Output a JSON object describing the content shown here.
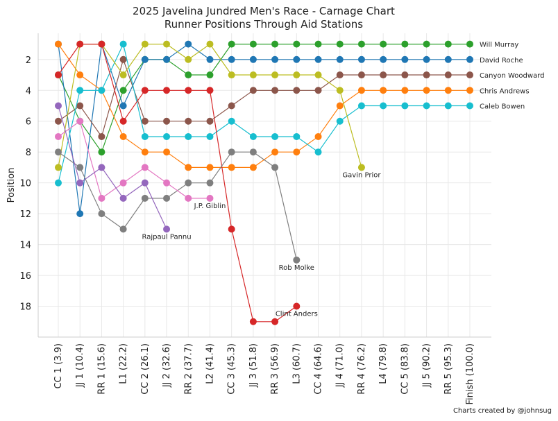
{
  "chart_data": {
    "type": "line",
    "title": "2025 Javelina Jundred Men's Race - Carnage Chart",
    "subtitle": "Runner Positions Through Aid Stations",
    "xlabel": "",
    "ylabel": "Position",
    "ylim": [
      20,
      0.3
    ],
    "y_inverted": true,
    "y_ticks": [
      2,
      4,
      6,
      8,
      10,
      12,
      14,
      16,
      18
    ],
    "grid": true,
    "categories": [
      "CC 1 (3.9)",
      "JJ 1 (10.4)",
      "RR 1 (15.6)",
      "L1 (22.2)",
      "CC 2 (26.1)",
      "JJ 2 (32.6)",
      "RR 2 (37.7)",
      "L2 (41.4)",
      "CC 3 (45.3)",
      "JJ 3 (51.8)",
      "RR 3 (56.9)",
      "L3 (60.7)",
      "CC 4 (64.6)",
      "JJ 4 (71.0)",
      "RR 4 (76.2)",
      "L4 (79.8)",
      "CC 5 (83.8)",
      "JJ 5 (90.2)",
      "RR 5 (95.3)",
      "Finish (100.0)"
    ],
    "series": [
      {
        "name": "Will Murray",
        "color": "#2ca02c",
        "label_end": true,
        "values": [
          3,
          6,
          8,
          4,
          2,
          2,
          3,
          3,
          1,
          1,
          1,
          1,
          1,
          1,
          1,
          1,
          1,
          1,
          1,
          1
        ]
      },
      {
        "name": "David Roche",
        "color": "#1f77b4",
        "label_end": true,
        "values": [
          1,
          12,
          1,
          5,
          2,
          2,
          1,
          2,
          2,
          2,
          2,
          2,
          2,
          2,
          2,
          2,
          2,
          2,
          2,
          2
        ]
      },
      {
        "name": "Canyon Woodward",
        "color": "#8c564b",
        "label_end": true,
        "values": [
          6,
          5,
          7,
          2,
          6,
          6,
          6,
          6,
          5,
          4,
          4,
          4,
          4,
          3,
          3,
          3,
          3,
          3,
          3,
          3
        ]
      },
      {
        "name": "Chris Andrews",
        "color": "#ff7f0e",
        "label_end": true,
        "values": [
          1,
          3,
          4,
          7,
          8,
          8,
          9,
          9,
          9,
          9,
          8,
          8,
          7,
          5,
          4,
          4,
          4,
          4,
          4,
          4
        ]
      },
      {
        "name": "Caleb Bowen",
        "color": "#17becf",
        "label_end": true,
        "values": [
          10,
          4,
          4,
          1,
          7,
          7,
          7,
          7,
          6,
          7,
          7,
          7,
          8,
          6,
          5,
          5,
          5,
          5,
          5,
          5
        ]
      },
      {
        "name": "Gavin Prior",
        "color": "#bcbd22",
        "label_end": false,
        "values": [
          9,
          1,
          1,
          3,
          1,
          1,
          2,
          1,
          3,
          3,
          3,
          3,
          3,
          4,
          9,
          null,
          null,
          null,
          null,
          null
        ]
      },
      {
        "name": "Clint Anders",
        "color": "#d62728",
        "label_end": false,
        "values": [
          3,
          1,
          1,
          6,
          4,
          4,
          4,
          4,
          13,
          19,
          19,
          18,
          null,
          null,
          null,
          null,
          null,
          null,
          null,
          null
        ]
      },
      {
        "name": "Rob Molke",
        "color": "#7f7f7f",
        "label_end": false,
        "values": [
          8,
          9,
          12,
          13,
          11,
          11,
          10,
          10,
          8,
          8,
          9,
          15,
          null,
          null,
          null,
          null,
          null,
          null,
          null,
          null
        ]
      },
      {
        "name": "J.P. Giblin",
        "color": "#e377c2",
        "label_end": false,
        "values": [
          7,
          6,
          11,
          10,
          9,
          10,
          11,
          11,
          null,
          null,
          null,
          null,
          null,
          null,
          null,
          null,
          null,
          null,
          null,
          null
        ]
      },
      {
        "name": "Rajpaul Pannu",
        "color": "#9467bd",
        "label_end": false,
        "values": [
          5,
          10,
          9,
          11,
          10,
          13,
          null,
          null,
          null,
          null,
          null,
          null,
          null,
          null,
          null,
          null,
          null,
          null,
          null,
          null
        ]
      }
    ],
    "annotations": [
      {
        "text": "Gavin Prior",
        "series": "Gavin Prior"
      },
      {
        "text": "Clint Anders",
        "series": "Clint Anders"
      },
      {
        "text": "Rob Molke",
        "series": "Rob Molke"
      },
      {
        "text": "J.P. Giblin",
        "series": "J.P. Giblin"
      },
      {
        "text": "Rajpaul Pannu",
        "series": "Rajpaul Pannu"
      }
    ],
    "credit": "Charts created by @johnsug"
  }
}
